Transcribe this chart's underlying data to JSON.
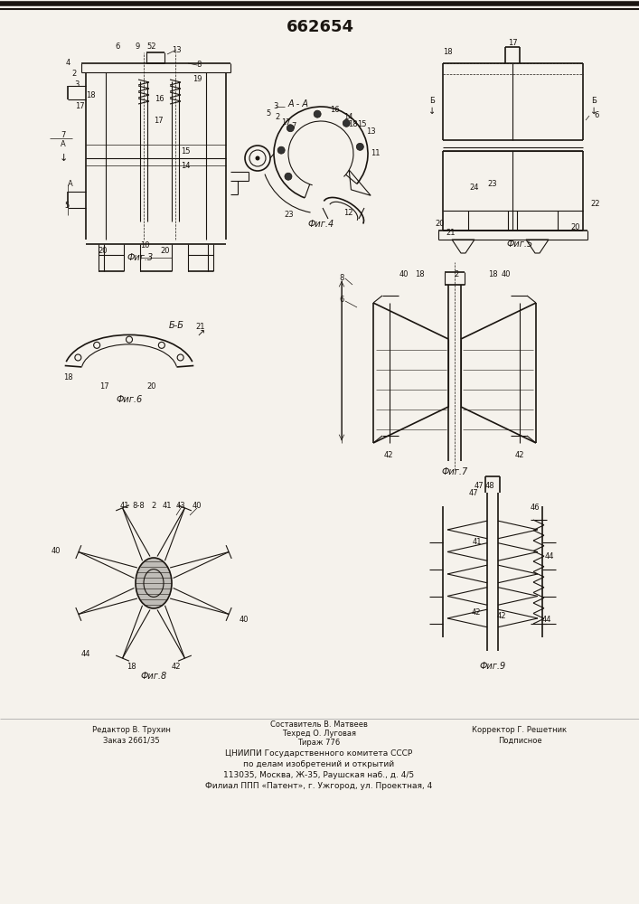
{
  "title": "662654",
  "title_fontsize": 13,
  "bg_color": "#f0ede6",
  "line_color": "#2a2520",
  "fig_captions": [
    "Фиг.3",
    "Фиг.4",
    "Фиг.5",
    "Фиг.6",
    "Фиг.7",
    "Фиг.8",
    "Фиг.9"
  ],
  "footer": {
    "col1": [
      "Редактор В. Трухин",
      "Заказ 2661/35"
    ],
    "col2": [
      "Составитель В. Матвеев",
      "Техред О. Луговая",
      "Тираж 776",
      "ЦНИИПИ Государственного комитета СССР",
      "по делам изобретений и открытий",
      "113035, Москва, Ж-35, Раушская наб., д. 4/5",
      "Филиал ППП «Патент», г. Ужгород, ул. Проектная, 4"
    ],
    "col3": [
      "Корректор Г. Решетник",
      "Подписное"
    ]
  }
}
